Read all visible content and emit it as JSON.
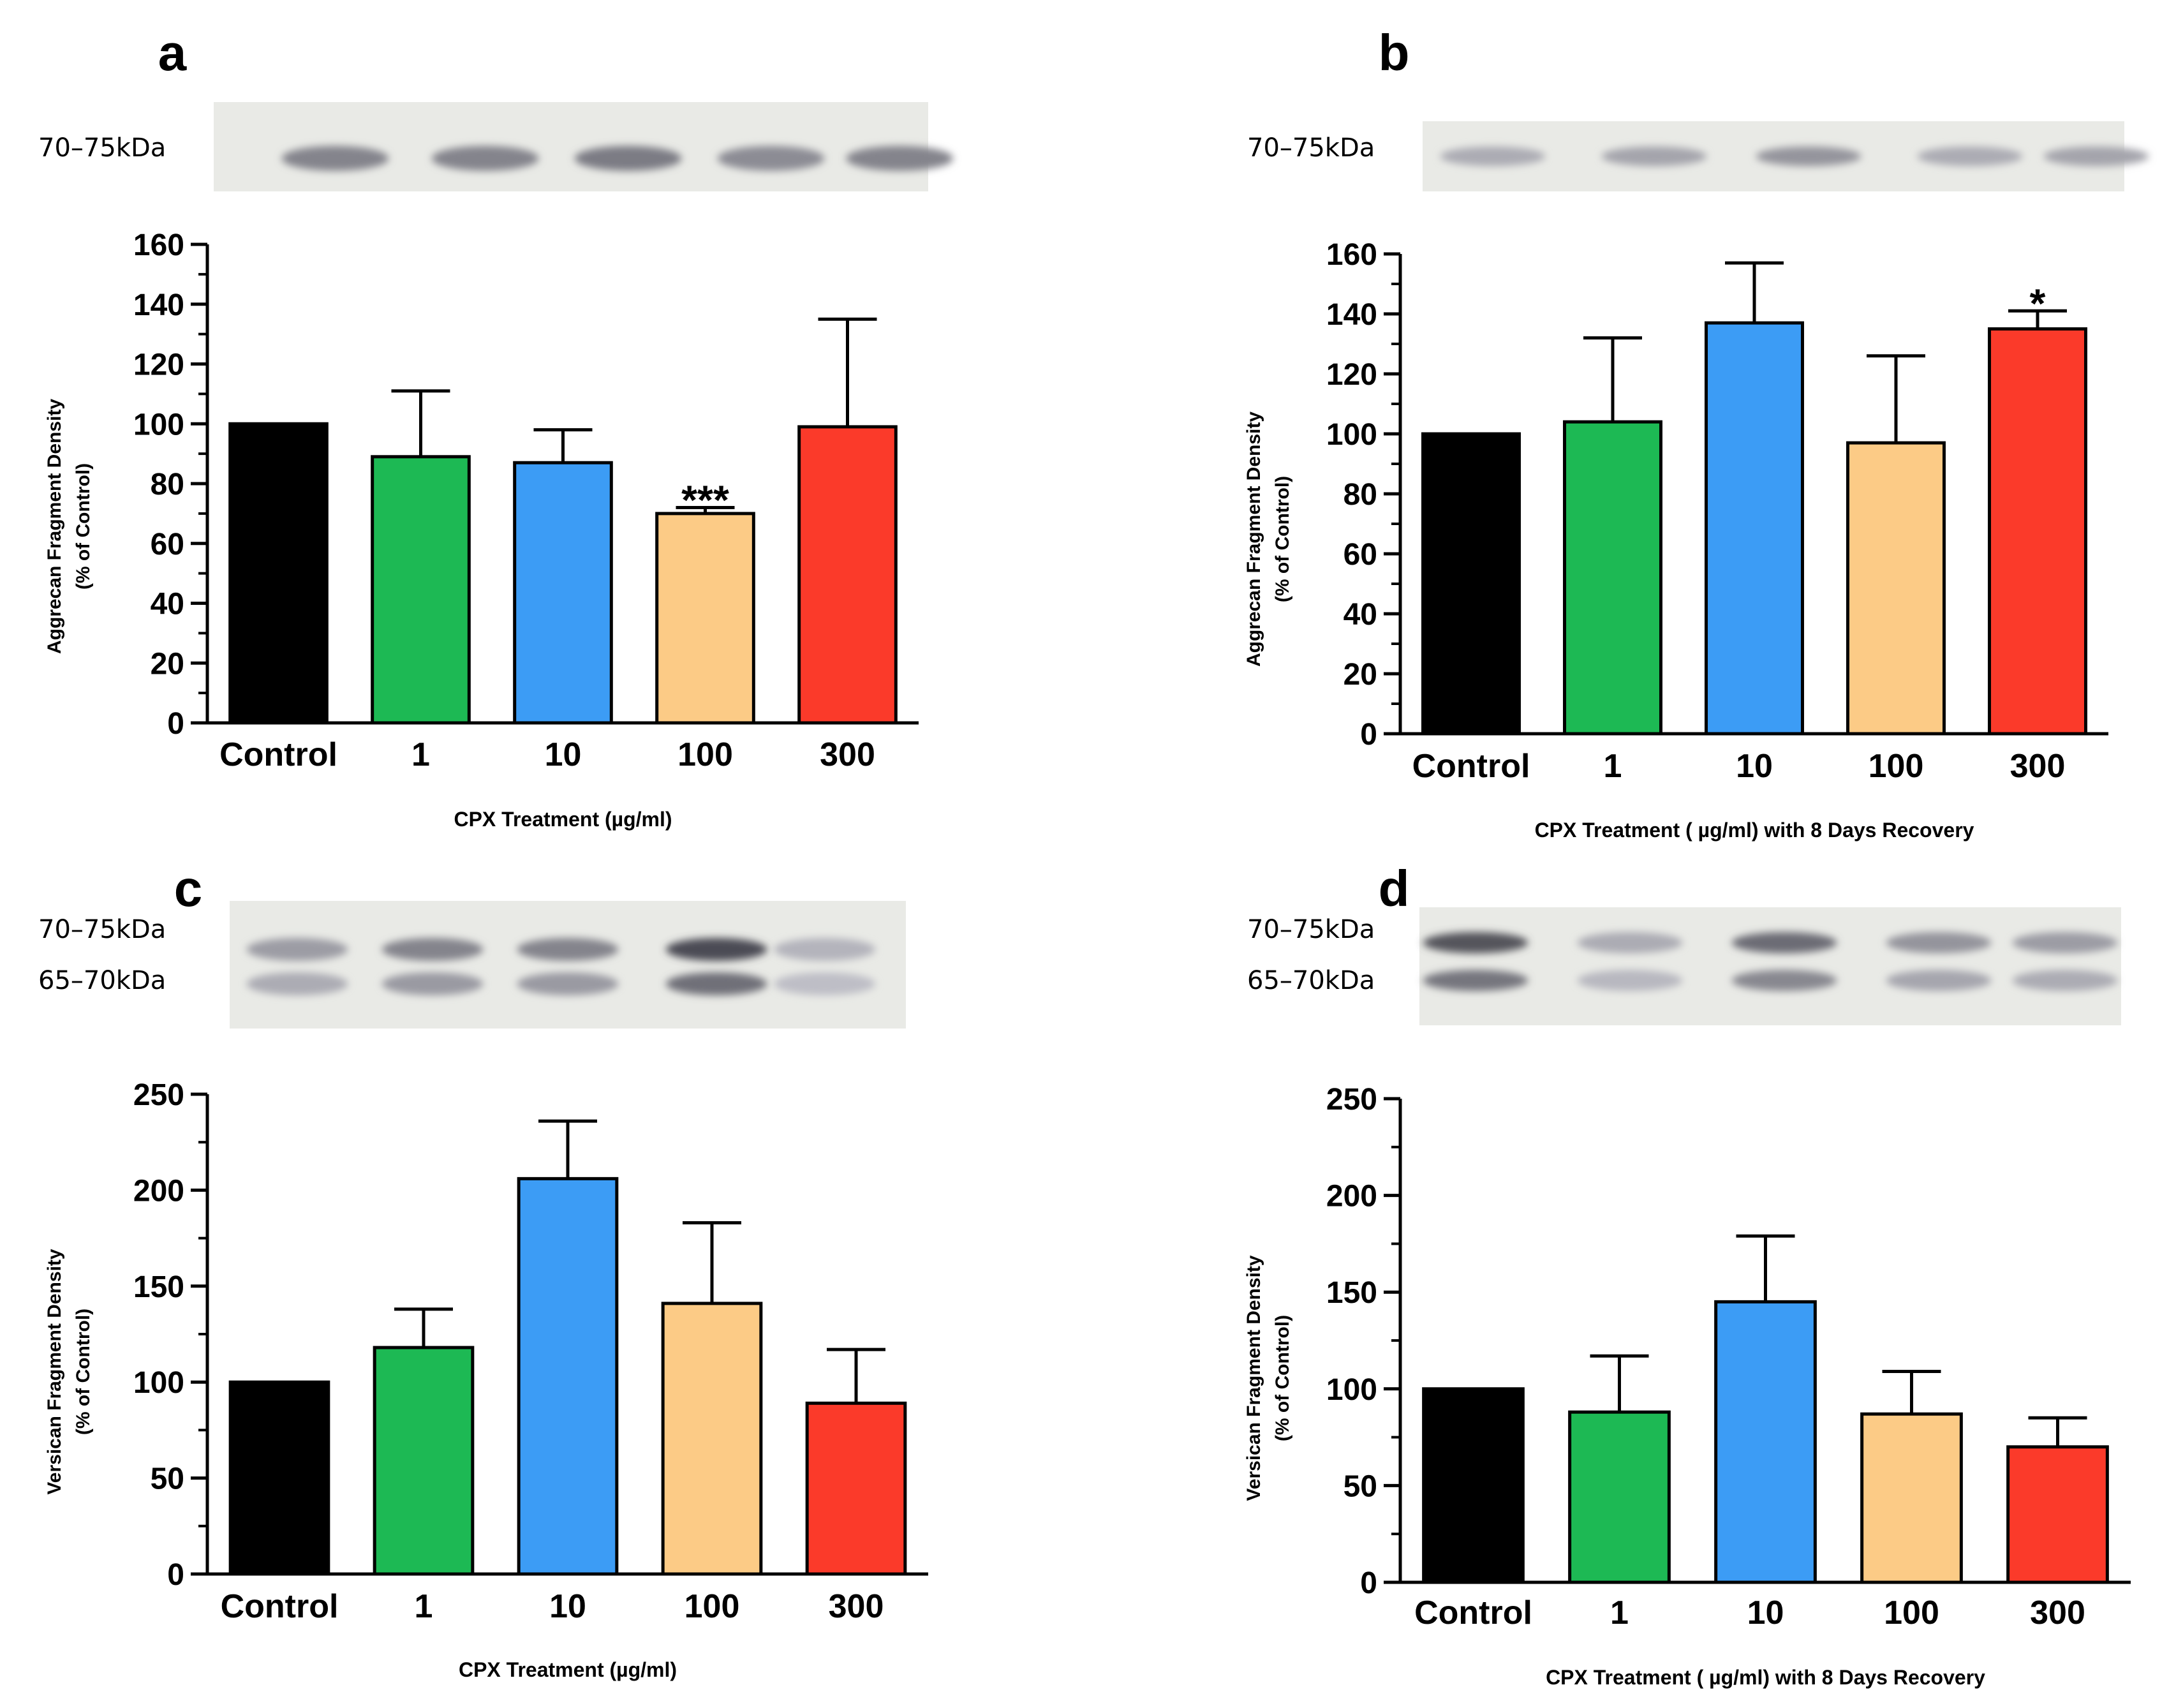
{
  "chart_data": [
    {
      "panel": "a",
      "type": "bar",
      "categories": [
        "Control",
        "1",
        "10",
        "100",
        "300"
      ],
      "values": [
        100,
        89,
        87,
        70,
        99
      ],
      "errors": [
        0,
        22,
        11,
        2,
        36
      ],
      "colors": [
        "#000000",
        "#1db954",
        "#3c9cf5",
        "#fccb86",
        "#fb3a2a"
      ],
      "annotations": [
        "",
        "",
        "",
        "***",
        ""
      ],
      "ylim": [
        0,
        160
      ],
      "yticks": [
        0,
        20,
        40,
        60,
        80,
        100,
        120,
        140,
        160
      ],
      "ylabel_line1": "Aggrecan Fragment Density",
      "ylabel_line2": "(% of Control)",
      "xlabel": "CPX Treatment (µg/ml)",
      "blot_labels": [
        "70–75kDa"
      ]
    },
    {
      "panel": "b",
      "type": "bar",
      "categories": [
        "Control",
        "1",
        "10",
        "100",
        "300"
      ],
      "values": [
        100,
        104,
        137,
        97,
        135
      ],
      "errors": [
        0,
        28,
        20,
        29,
        6
      ],
      "colors": [
        "#000000",
        "#1db954",
        "#3c9cf5",
        "#fccb86",
        "#fb3a2a"
      ],
      "annotations": [
        "",
        "",
        "",
        "",
        "*"
      ],
      "ylim": [
        0,
        160
      ],
      "yticks": [
        0,
        20,
        40,
        60,
        80,
        100,
        120,
        140,
        160
      ],
      "ylabel_line1": "Aggrecan Fragment Density",
      "ylabel_line2": "(% of Control)",
      "xlabel": "CPX Treatment ( µg/ml) with 8 Days Recovery",
      "blot_labels": [
        "70–75kDa"
      ]
    },
    {
      "panel": "c",
      "type": "bar",
      "categories": [
        "Control",
        "1",
        "10",
        "100",
        "300"
      ],
      "values": [
        100,
        118,
        206,
        141,
        89
      ],
      "errors": [
        0,
        20,
        30,
        42,
        28
      ],
      "colors": [
        "#000000",
        "#1db954",
        "#3c9cf5",
        "#fccb86",
        "#fb3a2a"
      ],
      "annotations": [
        "",
        "",
        "",
        "",
        ""
      ],
      "ylim": [
        0,
        250
      ],
      "yticks": [
        0,
        50,
        100,
        150,
        200,
        250
      ],
      "ylabel_line1": "Versican Fragment Density",
      "ylabel_line2": "(% of Control)",
      "xlabel": "CPX Treatment (µg/ml)",
      "blot_labels": [
        "70–75kDa",
        "65–70kDa"
      ]
    },
    {
      "panel": "d",
      "type": "bar",
      "categories": [
        "Control",
        "1",
        "10",
        "100",
        "300"
      ],
      "values": [
        100,
        88,
        145,
        87,
        70
      ],
      "errors": [
        0,
        29,
        34,
        22,
        15
      ],
      "colors": [
        "#000000",
        "#1db954",
        "#3c9cf5",
        "#fccb86",
        "#fb3a2a"
      ],
      "annotations": [
        "",
        "",
        "",
        "",
        ""
      ],
      "ylim": [
        0,
        250
      ],
      "yticks": [
        0,
        50,
        100,
        150,
        200,
        250
      ],
      "ylabel_line1": "Versican  Fragment Density",
      "ylabel_line2": "(% of Control)",
      "xlabel": "CPX Treatment ( µg/ml) with 8 Days Recovery",
      "blot_labels": [
        "70–75kDa",
        "65–70kDa"
      ]
    }
  ],
  "colors": {
    "control": "#000000",
    "dose_1": "#1db954",
    "dose_10": "#3c9cf5",
    "dose_100": "#fccb86",
    "dose_300": "#fb3a2a"
  }
}
